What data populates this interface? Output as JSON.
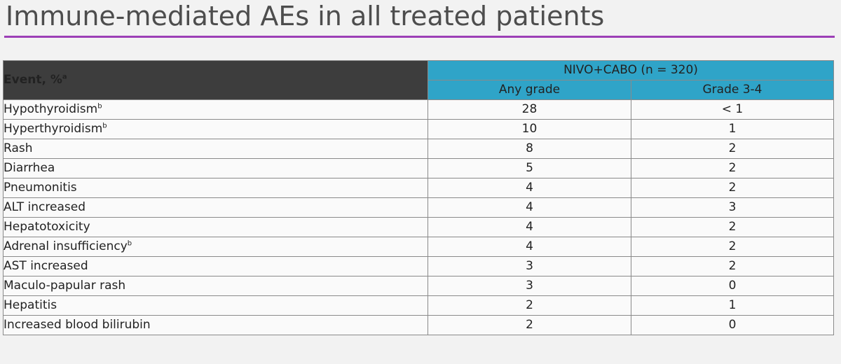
{
  "title": "Immune-mediated AEs in all treated patients",
  "table": {
    "event_header": "Event, %",
    "event_header_sup": "a",
    "group_header": "NIVO+CABO (n = 320)",
    "col_any": "Any grade",
    "col_grade34": "Grade 3-4",
    "rows": [
      {
        "event": "Hypothyroidism",
        "sup": "b",
        "any": "28",
        "g34": "< 1"
      },
      {
        "event": "Hyperthyroidism",
        "sup": "b",
        "any": "10",
        "g34": "1"
      },
      {
        "event": "Rash",
        "sup": "",
        "any": "8",
        "g34": "2"
      },
      {
        "event": "Diarrhea",
        "sup": "",
        "any": "5",
        "g34": "2"
      },
      {
        "event": "Pneumonitis",
        "sup": "",
        "any": "4",
        "g34": "2"
      },
      {
        "event": "ALT increased",
        "sup": "",
        "any": "4",
        "g34": "3"
      },
      {
        "event": "Hepatotoxicity",
        "sup": "",
        "any": "4",
        "g34": "2"
      },
      {
        "event": "Adrenal insufficiency",
        "sup": "b",
        "any": "4",
        "g34": "2"
      },
      {
        "event": "AST increased",
        "sup": "",
        "any": "3",
        "g34": "2"
      },
      {
        "event": "Maculo-papular rash",
        "sup": "",
        "any": "3",
        "g34": "0"
      },
      {
        "event": "Hepatitis",
        "sup": "",
        "any": "2",
        "g34": "1"
      },
      {
        "event": "Increased blood bilirubin",
        "sup": "",
        "any": "2",
        "g34": "0"
      }
    ]
  },
  "colors": {
    "title_rule": "#9c3fb6",
    "header_dark": "#3d3d3d",
    "header_blue": "#2fa4c8"
  }
}
